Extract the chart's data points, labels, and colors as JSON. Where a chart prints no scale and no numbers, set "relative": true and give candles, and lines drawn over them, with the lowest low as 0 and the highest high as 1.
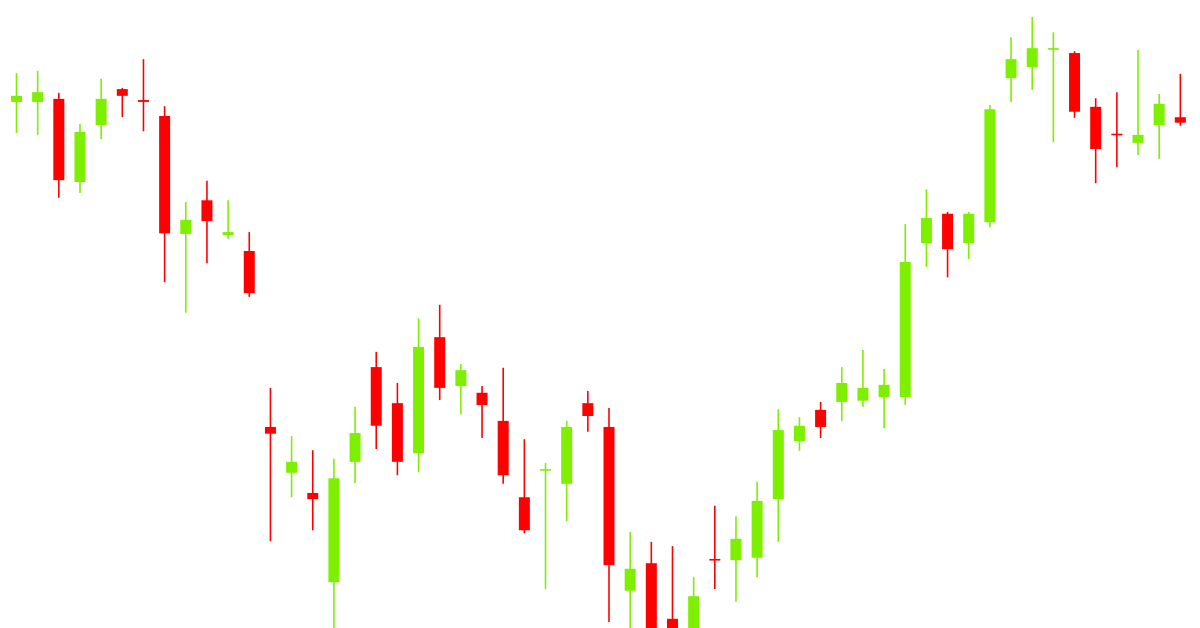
{
  "chart_data": {
    "type": "candlestick",
    "relative": true,
    "categories": [
      null,
      null,
      null,
      null,
      null,
      null,
      null,
      null,
      null,
      null,
      null,
      null,
      null,
      null,
      null,
      null,
      null,
      null,
      null,
      null,
      null,
      null,
      null,
      null,
      null,
      null,
      null,
      null,
      null,
      null,
      null,
      null,
      null,
      null,
      null,
      null,
      null,
      null,
      null,
      null,
      null,
      null,
      null,
      null,
      null,
      null,
      null,
      null,
      null,
      null,
      null,
      null,
      null,
      null,
      null,
      null
    ],
    "ohlc": [
      [
        0.861,
        0.908,
        0.81,
        0.871
      ],
      [
        0.861,
        0.912,
        0.807,
        0.877
      ],
      [
        0.866,
        0.876,
        0.704,
        0.733
      ],
      [
        0.73,
        0.825,
        0.712,
        0.812
      ],
      [
        0.823,
        0.899,
        0.8,
        0.866
      ],
      [
        0.882,
        0.884,
        0.836,
        0.871
      ],
      [
        0.864,
        0.931,
        0.813,
        0.861
      ],
      [
        0.838,
        0.854,
        0.566,
        0.646
      ],
      [
        0.645,
        0.697,
        0.516,
        0.668
      ],
      [
        0.7,
        0.732,
        0.597,
        0.666
      ],
      [
        0.643,
        0.7,
        0.637,
        0.648
      ],
      [
        0.617,
        0.648,
        0.542,
        0.548
      ],
      [
        0.329,
        0.393,
        0.142,
        0.318
      ],
      [
        0.254,
        0.314,
        0.214,
        0.272
      ],
      [
        0.221,
        0.291,
        0.16,
        0.211
      ],
      [
        0.075,
        0.277,
        0,
        0.245
      ],
      [
        0.272,
        0.362,
        0.237,
        0.319
      ],
      [
        0.427,
        0.452,
        0.293,
        0.331
      ],
      [
        0.368,
        0.401,
        0.25,
        0.272
      ],
      [
        0.286,
        0.507,
        0.255,
        0.46
      ],
      [
        0.476,
        0.529,
        0.373,
        0.393
      ],
      [
        0.396,
        0.432,
        0.35,
        0.422
      ],
      [
        0.385,
        0.396,
        0.311,
        0.365
      ],
      [
        0.339,
        0.426,
        0.236,
        0.25
      ],
      [
        0.214,
        0.309,
        0.155,
        0.16
      ],
      [
        0.26,
        0.27,
        0.064,
        0.26
      ],
      [
        0.236,
        0.339,
        0.175,
        0.329
      ],
      [
        0.368,
        0.388,
        0.321,
        0.347
      ],
      [
        0.329,
        0.36,
        0.01,
        0.103
      ],
      [
        0.061,
        0.157,
        0,
        0.097
      ],
      [
        0.106,
        0.141,
        0,
        0
      ],
      [
        0.015,
        0.134,
        0,
        0
      ],
      [
        0,
        0.083,
        0,
        0.052
      ],
      [
        0.113,
        0.2,
        0.064,
        0.111
      ],
      [
        0.111,
        0.183,
        0.043,
        0.146
      ],
      [
        0.115,
        0.239,
        0.083,
        0.208
      ],
      [
        0.211,
        0.358,
        0.141,
        0.324
      ],
      [
        0.306,
        0.345,
        0.29,
        0.331
      ],
      [
        0.357,
        0.37,
        0.311,
        0.329
      ],
      [
        0.37,
        0.427,
        0.339,
        0.401
      ],
      [
        0.372,
        0.455,
        0.362,
        0.393
      ],
      [
        0.378,
        0.424,
        0.327,
        0.398
      ],
      [
        0.378,
        0.661,
        0.365,
        0.599
      ],
      [
        0.63,
        0.718,
        0.591,
        0.671
      ],
      [
        0.678,
        0.681,
        0.574,
        0.62
      ],
      [
        0.63,
        0.681,
        0.604,
        0.678
      ],
      [
        0.664,
        0.856,
        0.656,
        0.849
      ],
      [
        0.9,
        0.967,
        0.861,
        0.931
      ],
      [
        0.918,
        1,
        0.881,
        0.949
      ],
      [
        0.949,
        0.975,
        0.795,
        0.949
      ],
      [
        0.941,
        0.944,
        0.835,
        0.845
      ],
      [
        0.853,
        0.867,
        0.728,
        0.784
      ],
      [
        0.809,
        0.877,
        0.754,
        0.807
      ],
      [
        0.794,
        0.946,
        0.774,
        0.807
      ],
      [
        0.823,
        0.874,
        0.768,
        0.858
      ],
      [
        0.836,
        0.907,
        0.822,
        0.827
      ]
    ],
    "colors": [
      "#7fef00",
      "#7fef00",
      "#ff0000",
      "#7fef00",
      "#7fef00",
      "#ff0000",
      "#ff0000",
      "#ff0000",
      "#7fef00",
      "#ff0000",
      "#7fef00",
      "#ff0000",
      "#ff0000",
      "#7fef00",
      "#ff0000",
      "#7fef00",
      "#7fef00",
      "#ff0000",
      "#ff0000",
      "#7fef00",
      "#ff0000",
      "#7fef00",
      "#ff0000",
      "#ff0000",
      "#ff0000",
      "#7fef00",
      "#7fef00",
      "#ff0000",
      "#ff0000",
      "#7fef00",
      "#ff0000",
      "#ff0000",
      "#7fef00",
      "#ff0000",
      "#7fef00",
      "#7fef00",
      "#7fef00",
      "#7fef00",
      "#ff0000",
      "#7fef00",
      "#7fef00",
      "#7fef00",
      "#7fef00",
      "#7fef00",
      "#ff0000",
      "#7fef00",
      "#7fef00",
      "#7fef00",
      "#7fef00",
      "#7fef00",
      "#ff0000",
      "#ff0000",
      "#ff0000",
      "#7fef00",
      "#7fef00",
      "#ff0000"
    ]
  }
}
